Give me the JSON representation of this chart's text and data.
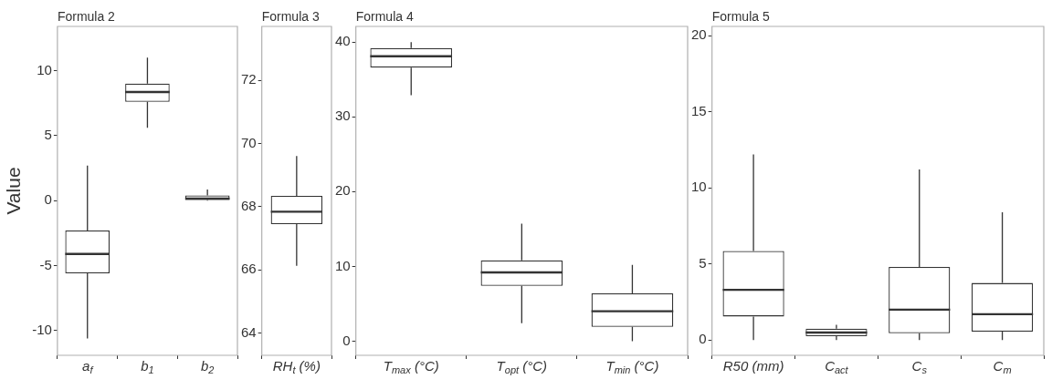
{
  "chart_data": [
    {
      "type": "box",
      "title": "Formula 2",
      "ylabel": "Value",
      "categories": [
        "a$_{f}$",
        "b$_{1}$",
        "b$_{2}$"
      ],
      "boxes": [
        {
          "low": -10.6,
          "q1": -5.6,
          "median": -4.1,
          "q3": -2.3,
          "high": 2.7
        },
        {
          "low": 5.6,
          "q1": 7.6,
          "median": 8.35,
          "q3": 9.0,
          "high": 11.0
        },
        {
          "low": 0.0,
          "q1": 0.05,
          "median": 0.15,
          "q3": 0.4,
          "high": 0.85
        }
      ],
      "ylim": [
        -11.9,
        13.4
      ],
      "yticks": [
        -10,
        -5,
        0,
        5,
        10
      ],
      "grid": false
    },
    {
      "type": "box",
      "title": "Formula 3",
      "categories": [
        "RH$_{t}$ (%)"
      ],
      "boxes": [
        {
          "low": 66.13,
          "q1": 67.45,
          "median": 67.84,
          "q3": 68.34,
          "high": 69.6
        }
      ],
      "ylim": [
        63.3,
        73.7
      ],
      "yticks": [
        64,
        66,
        68,
        70,
        72
      ],
      "grid": false
    },
    {
      "type": "box",
      "title": "Formula 4",
      "categories": [
        "T$_{max}$ (°C)",
        "T$_{opt}$ (°C)",
        "T$_{min}$ (°C)"
      ],
      "boxes": [
        {
          "low": 32.9,
          "q1": 36.6,
          "median": 38.1,
          "q3": 39.2,
          "high": 40.0
        },
        {
          "low": 2.4,
          "q1": 7.4,
          "median": 9.2,
          "q3": 10.8,
          "high": 15.7
        },
        {
          "low": 0.0,
          "q1": 1.9,
          "median": 4.0,
          "q3": 6.4,
          "high": 10.2
        }
      ],
      "ylim": [
        -1.9,
        42.1
      ],
      "yticks": [
        0,
        10,
        20,
        30,
        40
      ],
      "grid": false
    },
    {
      "type": "box",
      "title": "Formula 5",
      "categories": [
        "R50 (mm)",
        "C$_{act}$",
        "C$_{s}$",
        "C$_{m}$"
      ],
      "boxes": [
        {
          "low": 0.0,
          "q1": 1.55,
          "median": 3.3,
          "q3": 5.85,
          "high": 12.2
        },
        {
          "low": 0.0,
          "q1": 0.25,
          "median": 0.5,
          "q3": 0.75,
          "high": 1.0
        },
        {
          "low": 0.0,
          "q1": 0.45,
          "median": 2.0,
          "q3": 4.8,
          "high": 11.2
        },
        {
          "low": 0.0,
          "q1": 0.55,
          "median": 1.7,
          "q3": 3.75,
          "high": 8.4
        }
      ],
      "ylim": [
        -1.0,
        20.6
      ],
      "yticks": [
        0,
        5,
        10,
        15,
        20
      ],
      "grid": false
    }
  ]
}
